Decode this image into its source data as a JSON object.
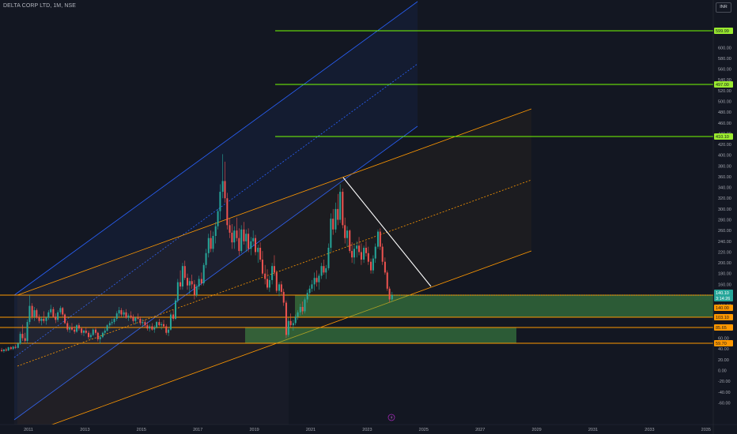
{
  "header": {
    "symbol_line": "DELTA CORP LTD, 1M, NSE",
    "currency": "INR"
  },
  "chart_data": {
    "type": "candlestick",
    "symbol": "DELTA CORP LTD",
    "timeframe": "1M",
    "exchange": "NSE",
    "currency": "INR",
    "x_ticks": [
      "2011",
      "2013",
      "2015",
      "2017",
      "2019",
      "2021",
      "2023",
      "2025",
      "2027",
      "2029",
      "2031",
      "2033",
      "2035"
    ],
    "y_ticks": [
      600,
      580,
      560,
      540,
      520,
      500,
      480,
      460,
      440,
      420,
      400,
      380,
      360,
      340,
      320,
      300,
      280,
      260,
      240,
      220,
      200,
      180,
      160,
      140,
      120,
      100,
      80,
      60,
      40,
      20,
      0,
      -20,
      -40,
      -60
    ],
    "price_tags": [
      {
        "value": "599.99",
        "color": "#9bea2f",
        "text_color": "#131722"
      },
      {
        "value": "497.00",
        "color": "#9bea2f",
        "text_color": "#131722"
      },
      {
        "value": "410.10",
        "color": "#9bea2f",
        "text_color": "#131722"
      },
      {
        "value": "140.10",
        "color": "#26a69a",
        "text_color": "#ffffff"
      },
      {
        "value": "3:14:26",
        "color": "#26a69a",
        "text_color": "#ffffff"
      },
      {
        "value": "140.00",
        "color": "#ff9800",
        "text_color": "#131722"
      },
      {
        "value": "103.10",
        "color": "#ff9800",
        "text_color": "#131722"
      },
      {
        "value": "85.65",
        "color": "#ff9800",
        "text_color": "#131722"
      },
      {
        "value": "59.70",
        "color": "#ff9800",
        "text_color": "#131722"
      }
    ],
    "candles": [
      [
        2010.05,
        38,
        42,
        34,
        36
      ],
      [
        2010.13,
        36,
        40,
        33,
        39
      ],
      [
        2010.21,
        39,
        42,
        35,
        37
      ],
      [
        2010.29,
        37,
        44,
        36,
        43
      ],
      [
        2010.38,
        43,
        45,
        38,
        40
      ],
      [
        2010.46,
        40,
        46,
        38,
        44
      ],
      [
        2010.54,
        44,
        48,
        40,
        42
      ],
      [
        2010.63,
        42,
        52,
        41,
        50
      ],
      [
        2010.71,
        50,
        72,
        48,
        68
      ],
      [
        2010.79,
        68,
        85,
        55,
        60
      ],
      [
        2010.88,
        60,
        70,
        52,
        55
      ],
      [
        2010.96,
        55,
        95,
        50,
        90
      ],
      [
        2011.04,
        90,
        140,
        85,
        120
      ],
      [
        2011.13,
        120,
        125,
        95,
        100
      ],
      [
        2011.21,
        100,
        118,
        92,
        112
      ],
      [
        2011.29,
        112,
        115,
        96,
        98
      ],
      [
        2011.38,
        98,
        104,
        88,
        92
      ],
      [
        2011.46,
        92,
        100,
        84,
        96
      ],
      [
        2011.54,
        96,
        110,
        88,
        92
      ],
      [
        2011.63,
        92,
        100,
        85,
        98
      ],
      [
        2011.71,
        98,
        112,
        94,
        108
      ],
      [
        2011.79,
        108,
        122,
        104,
        114
      ],
      [
        2011.88,
        114,
        118,
        98,
        100
      ],
      [
        2011.96,
        100,
        106,
        88,
        94
      ],
      [
        2012.04,
        94,
        112,
        90,
        108
      ],
      [
        2012.13,
        108,
        120,
        104,
        116
      ],
      [
        2012.21,
        116,
        118,
        100,
        104
      ],
      [
        2012.29,
        104,
        106,
        86,
        88
      ],
      [
        2012.38,
        88,
        92,
        72,
        76
      ],
      [
        2012.46,
        76,
        84,
        70,
        80
      ],
      [
        2012.54,
        80,
        88,
        74,
        76
      ],
      [
        2012.63,
        76,
        82,
        68,
        72
      ],
      [
        2012.71,
        72,
        86,
        70,
        84
      ],
      [
        2012.79,
        84,
        88,
        74,
        78
      ],
      [
        2012.88,
        78,
        80,
        66,
        70
      ],
      [
        2012.96,
        70,
        76,
        64,
        74
      ],
      [
        2013.04,
        74,
        80,
        68,
        70
      ],
      [
        2013.13,
        70,
        74,
        58,
        62
      ],
      [
        2013.21,
        62,
        70,
        58,
        66
      ],
      [
        2013.29,
        66,
        78,
        64,
        76
      ],
      [
        2013.38,
        76,
        80,
        66,
        70
      ],
      [
        2013.46,
        70,
        72,
        54,
        58
      ],
      [
        2013.54,
        58,
        66,
        50,
        62
      ],
      [
        2013.63,
        62,
        72,
        60,
        70
      ],
      [
        2013.71,
        70,
        78,
        66,
        74
      ],
      [
        2013.79,
        74,
        86,
        72,
        84
      ],
      [
        2013.88,
        84,
        92,
        78,
        88
      ],
      [
        2013.96,
        88,
        96,
        84,
        90
      ],
      [
        2014.04,
        90,
        100,
        86,
        96
      ],
      [
        2014.13,
        96,
        110,
        92,
        106
      ],
      [
        2014.21,
        106,
        118,
        100,
        112
      ],
      [
        2014.29,
        112,
        116,
        100,
        104
      ],
      [
        2014.38,
        104,
        112,
        98,
        108
      ],
      [
        2014.46,
        108,
        114,
        96,
        98
      ],
      [
        2014.54,
        98,
        106,
        92,
        102
      ],
      [
        2014.63,
        102,
        110,
        96,
        100
      ],
      [
        2014.71,
        100,
        104,
        88,
        92
      ],
      [
        2014.79,
        92,
        100,
        86,
        98
      ],
      [
        2014.88,
        98,
        106,
        94,
        96
      ],
      [
        2014.96,
        96,
        100,
        84,
        88
      ],
      [
        2015.04,
        88,
        96,
        82,
        90
      ],
      [
        2015.13,
        90,
        94,
        80,
        84
      ],
      [
        2015.21,
        84,
        90,
        74,
        78
      ],
      [
        2015.29,
        78,
        86,
        72,
        82
      ],
      [
        2015.38,
        82,
        88,
        74,
        76
      ],
      [
        2015.46,
        76,
        84,
        70,
        80
      ],
      [
        2015.54,
        80,
        92,
        78,
        90
      ],
      [
        2015.63,
        90,
        96,
        82,
        84
      ],
      [
        2015.71,
        84,
        90,
        76,
        86
      ],
      [
        2015.79,
        86,
        94,
        80,
        82
      ],
      [
        2015.88,
        82,
        86,
        66,
        70
      ],
      [
        2015.96,
        70,
        80,
        64,
        76
      ],
      [
        2016.04,
        76,
        108,
        74,
        104
      ],
      [
        2016.13,
        104,
        112,
        92,
        96
      ],
      [
        2016.21,
        96,
        134,
        94,
        130
      ],
      [
        2016.29,
        130,
        170,
        126,
        164
      ],
      [
        2016.38,
        164,
        186,
        150,
        156
      ],
      [
        2016.46,
        156,
        200,
        150,
        194
      ],
      [
        2016.54,
        194,
        204,
        168,
        172
      ],
      [
        2016.63,
        172,
        180,
        150,
        158
      ],
      [
        2016.71,
        158,
        172,
        142,
        166
      ],
      [
        2016.79,
        166,
        178,
        152,
        160
      ],
      [
        2016.88,
        160,
        168,
        132,
        140
      ],
      [
        2016.96,
        140,
        160,
        136,
        156
      ],
      [
        2017.04,
        156,
        176,
        150,
        170
      ],
      [
        2017.13,
        170,
        182,
        158,
        162
      ],
      [
        2017.21,
        162,
        200,
        158,
        196
      ],
      [
        2017.29,
        196,
        226,
        190,
        218
      ],
      [
        2017.38,
        218,
        254,
        210,
        246
      ],
      [
        2017.46,
        246,
        260,
        220,
        226
      ],
      [
        2017.54,
        226,
        258,
        220,
        250
      ],
      [
        2017.63,
        250,
        276,
        236,
        268
      ],
      [
        2017.71,
        268,
        300,
        262,
        296
      ],
      [
        2017.79,
        296,
        346,
        280,
        332
      ],
      [
        2017.88,
        332,
        402,
        320,
        352
      ],
      [
        2017.96,
        352,
        388,
        312,
        320
      ],
      [
        2018.04,
        320,
        330,
        262,
        270
      ],
      [
        2018.13,
        270,
        282,
        246,
        256
      ],
      [
        2018.21,
        256,
        272,
        226,
        238
      ],
      [
        2018.29,
        238,
        268,
        226,
        260
      ],
      [
        2018.38,
        260,
        284,
        240,
        246
      ],
      [
        2018.46,
        246,
        264,
        214,
        222
      ],
      [
        2018.54,
        222,
        270,
        218,
        262
      ],
      [
        2018.63,
        262,
        276,
        234,
        240
      ],
      [
        2018.71,
        240,
        262,
        220,
        254
      ],
      [
        2018.79,
        254,
        264,
        220,
        226
      ],
      [
        2018.88,
        226,
        248,
        214,
        240
      ],
      [
        2018.96,
        240,
        260,
        232,
        246
      ],
      [
        2019.04,
        246,
        252,
        214,
        220
      ],
      [
        2019.13,
        220,
        234,
        200,
        228
      ],
      [
        2019.21,
        228,
        238,
        202,
        206
      ],
      [
        2019.29,
        206,
        222,
        176,
        180
      ],
      [
        2019.38,
        180,
        196,
        160,
        170
      ],
      [
        2019.46,
        170,
        188,
        150,
        154
      ],
      [
        2019.54,
        154,
        176,
        146,
        168
      ],
      [
        2019.63,
        168,
        200,
        160,
        194
      ],
      [
        2019.71,
        194,
        214,
        176,
        182
      ],
      [
        2019.79,
        182,
        186,
        144,
        148
      ],
      [
        2019.88,
        148,
        164,
        138,
        160
      ],
      [
        2019.96,
        160,
        166,
        140,
        146
      ],
      [
        2020.04,
        146,
        152,
        120,
        126
      ],
      [
        2020.13,
        126,
        130,
        60,
        66
      ],
      [
        2020.21,
        66,
        98,
        62,
        92
      ],
      [
        2020.29,
        92,
        106,
        80,
        84
      ],
      [
        2020.38,
        84,
        94,
        74,
        88
      ],
      [
        2020.46,
        88,
        104,
        84,
        100
      ],
      [
        2020.54,
        100,
        112,
        94,
        108
      ],
      [
        2020.63,
        108,
        124,
        102,
        118
      ],
      [
        2020.71,
        118,
        128,
        104,
        110
      ],
      [
        2020.79,
        110,
        136,
        106,
        132
      ],
      [
        2020.88,
        132,
        150,
        126,
        144
      ],
      [
        2020.96,
        144,
        158,
        138,
        152
      ],
      [
        2021.04,
        152,
        168,
        146,
        160
      ],
      [
        2021.13,
        160,
        182,
        148,
        172
      ],
      [
        2021.21,
        172,
        186,
        156,
        164
      ],
      [
        2021.29,
        164,
        180,
        150,
        176
      ],
      [
        2021.38,
        176,
        200,
        170,
        194
      ],
      [
        2021.46,
        194,
        206,
        178,
        182
      ],
      [
        2021.54,
        182,
        196,
        170,
        190
      ],
      [
        2021.63,
        190,
        236,
        186,
        228
      ],
      [
        2021.71,
        228,
        292,
        220,
        282
      ],
      [
        2021.79,
        282,
        300,
        252,
        262
      ],
      [
        2021.88,
        262,
        312,
        256,
        300
      ],
      [
        2021.96,
        300,
        328,
        270,
        280
      ],
      [
        2022.04,
        280,
        346,
        274,
        332
      ],
      [
        2022.13,
        332,
        338,
        264,
        270
      ],
      [
        2022.21,
        270,
        284,
        236,
        246
      ],
      [
        2022.29,
        246,
        268,
        230,
        260
      ],
      [
        2022.38,
        260,
        262,
        218,
        222
      ],
      [
        2022.46,
        222,
        238,
        200,
        210
      ],
      [
        2022.54,
        210,
        234,
        198,
        226
      ],
      [
        2022.63,
        226,
        240,
        210,
        232
      ],
      [
        2022.71,
        232,
        248,
        214,
        220
      ],
      [
        2022.79,
        220,
        236,
        196,
        206
      ],
      [
        2022.88,
        206,
        232,
        200,
        228
      ],
      [
        2022.96,
        228,
        240,
        212,
        218
      ],
      [
        2023.04,
        218,
        230,
        196,
        202
      ],
      [
        2023.13,
        202,
        208,
        180,
        186
      ],
      [
        2023.21,
        186,
        214,
        180,
        208
      ],
      [
        2023.29,
        208,
        236,
        200,
        230
      ],
      [
        2023.38,
        230,
        262,
        226,
        258
      ],
      [
        2023.46,
        258,
        264,
        224,
        230
      ],
      [
        2023.54,
        230,
        236,
        196,
        202
      ],
      [
        2023.63,
        202,
        210,
        178,
        182
      ],
      [
        2023.71,
        182,
        186,
        148,
        152
      ],
      [
        2023.79,
        152,
        156,
        126,
        132
      ],
      [
        2023.88,
        132,
        146,
        128,
        140.1
      ]
    ]
  }
}
